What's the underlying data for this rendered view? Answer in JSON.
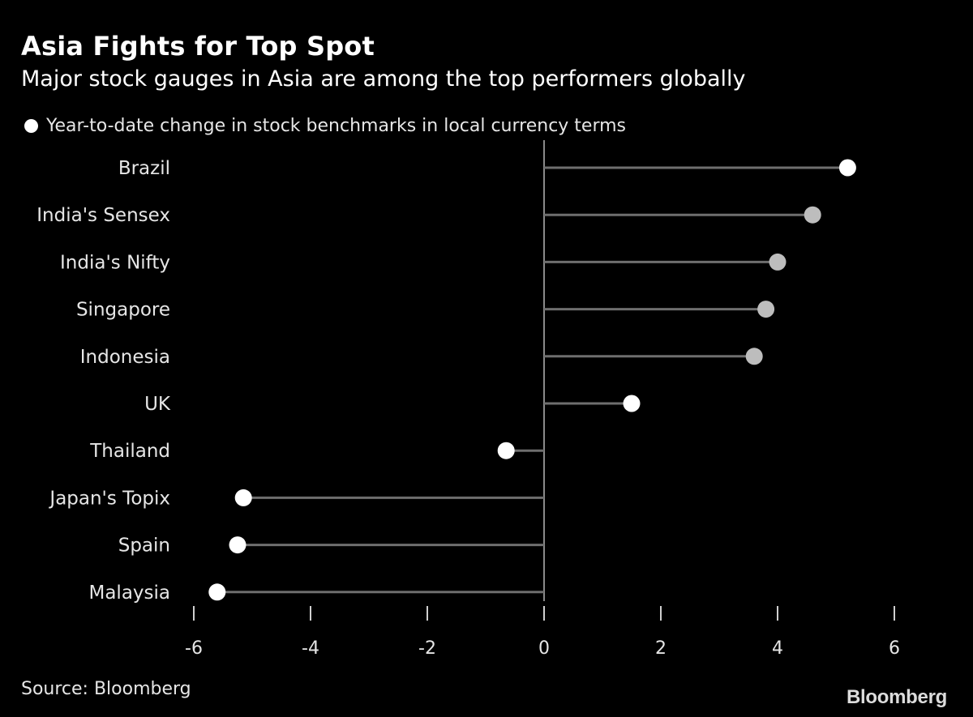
{
  "header": {
    "title": "Asia Fights for Top Spot",
    "subtitle": "Major stock gauges in Asia are among the top performers globally"
  },
  "legend": {
    "label": "Year-to-date change in stock benchmarks in local currency terms"
  },
  "footer": {
    "source": "Source: Bloomberg",
    "brand": "Bloomberg"
  },
  "colors": {
    "background": "#000000",
    "highlight_dot": "#ffffff",
    "muted_dot": "#bdbdbd",
    "stem": "#6e6e6e",
    "axis": "#8a8a8a"
  },
  "chart_data": {
    "type": "lollipop",
    "categories": [
      "Brazil",
      "India's Sensex",
      "India's Nifty",
      "Singapore",
      "Indonesia",
      "UK",
      "Thailand",
      "Japan's Topix",
      "Spain",
      "Malaysia"
    ],
    "values": [
      5.2,
      4.6,
      4.0,
      3.8,
      3.6,
      1.5,
      -0.65,
      -5.15,
      -5.25,
      -5.6
    ],
    "highlight": [
      true,
      false,
      false,
      false,
      false,
      true,
      true,
      true,
      true,
      true
    ],
    "xlim": [
      -6,
      6
    ],
    "xticks": [
      -6,
      -4,
      -2,
      0,
      2,
      4,
      6
    ],
    "legend_position": "top-left",
    "grid": false
  }
}
